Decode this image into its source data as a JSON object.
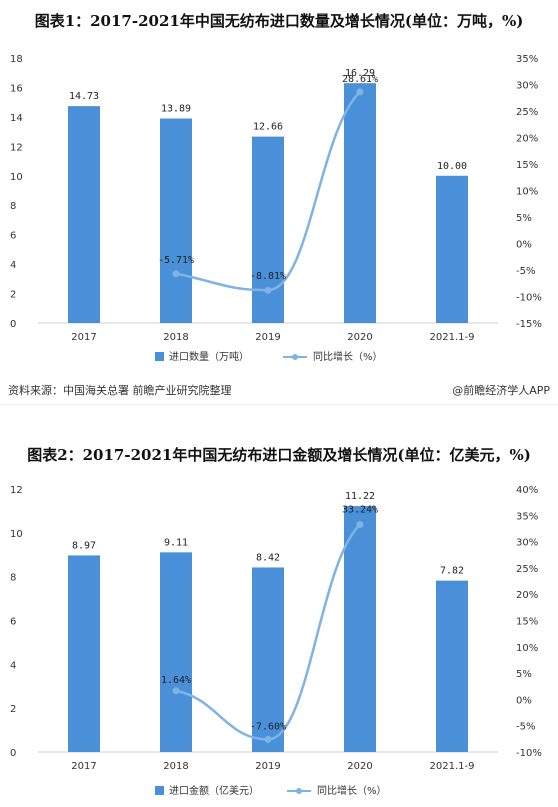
{
  "chart_data": [
    {
      "type": "bar",
      "title": "图表1：2017-2021年中国无纺布进口数量及增长情况(单位：万吨，%)",
      "categories": [
        "2017",
        "2018",
        "2019",
        "2020",
        "2021.1-9"
      ],
      "series": [
        {
          "name": "进口数量（万吨）",
          "type": "bar",
          "axis": "left",
          "values": [
            14.73,
            13.89,
            12.66,
            16.29,
            10.0
          ],
          "labels": [
            "14.73",
            "13.89",
            "12.66",
            "16.29",
            "10.00"
          ]
        },
        {
          "name": "同比增长（%）",
          "type": "line",
          "axis": "right",
          "values": [
            null,
            -5.71,
            -8.81,
            28.61,
            null
          ],
          "labels": [
            "",
            "-5.71%",
            "-8.81%",
            "28.61%",
            ""
          ]
        }
      ],
      "ylim": [
        0,
        18
      ],
      "yticks": [
        "0",
        "2",
        "4",
        "6",
        "8",
        "10",
        "12",
        "14",
        "16",
        "18"
      ],
      "y2lim": [
        -15,
        35
      ],
      "y2ticks": [
        "-15%",
        "-10%",
        "-5%",
        "0%",
        "5%",
        "10%",
        "15%",
        "20%",
        "25%",
        "30%",
        "35%"
      ],
      "legend": "bottom",
      "grid": false
    },
    {
      "type": "bar",
      "title": "图表2：2017-2021年中国无纺布进口金额及增长情况(单位：亿美元，%)",
      "categories": [
        "2017",
        "2018",
        "2019",
        "2020",
        "2021.1-9"
      ],
      "series": [
        {
          "name": "进口金额（亿美元）",
          "type": "bar",
          "axis": "left",
          "values": [
            8.97,
            9.11,
            8.42,
            11.22,
            7.82
          ],
          "labels": [
            "8.97",
            "9.11",
            "8.42",
            "11.22",
            "7.82"
          ]
        },
        {
          "name": "同比增长（%）",
          "type": "line",
          "axis": "right",
          "values": [
            null,
            1.64,
            -7.6,
            33.24,
            null
          ],
          "labels": [
            "",
            "1.64%",
            "-7.60%",
            "33.24%",
            ""
          ]
        }
      ],
      "ylim": [
        0,
        12
      ],
      "yticks": [
        "0",
        "2",
        "4",
        "6",
        "8",
        "10",
        "12"
      ],
      "y2lim": [
        -10,
        40
      ],
      "y2ticks": [
        "-10%",
        "-5%",
        "0%",
        "5%",
        "10%",
        "15%",
        "20%",
        "25%",
        "30%",
        "35%",
        "40%"
      ],
      "legend": "bottom",
      "grid": false
    }
  ],
  "source": {
    "text": "资料来源：中国海关总署 前瞻产业研究院整理",
    "brand": "@前瞻经济学人APP"
  },
  "colors": {
    "bar": "#4A90D9",
    "line": "#7FB3E3"
  }
}
